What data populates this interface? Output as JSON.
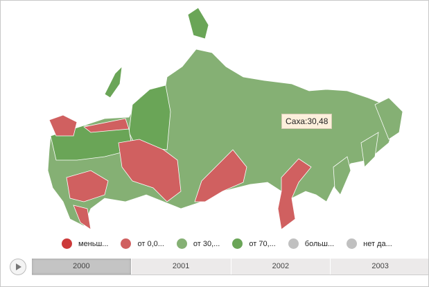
{
  "tooltip": {
    "text": "Саха:30,48"
  },
  "colors": {
    "lt0": "#cc3a3a",
    "r0_30": "#d06060",
    "r30_70": "#85b074",
    "r70": "#6aa557",
    "more": "#c0c0c0",
    "nodata": "#c0c0c0"
  },
  "legend": [
    {
      "label": "меньш...",
      "color": "#cc3a3a"
    },
    {
      "label": "от 0,0...",
      "color": "#d06060"
    },
    {
      "label": "от 30,...",
      "color": "#85b074"
    },
    {
      "label": "от 70,...",
      "color": "#6aa557"
    },
    {
      "label": "больш...",
      "color": "#c0c0c0"
    },
    {
      "label": "нет да...",
      "color": "#c0c0c0"
    }
  ],
  "timeline": {
    "years": [
      "2000",
      "2001",
      "2002",
      "2003"
    ],
    "selected": "2000"
  }
}
